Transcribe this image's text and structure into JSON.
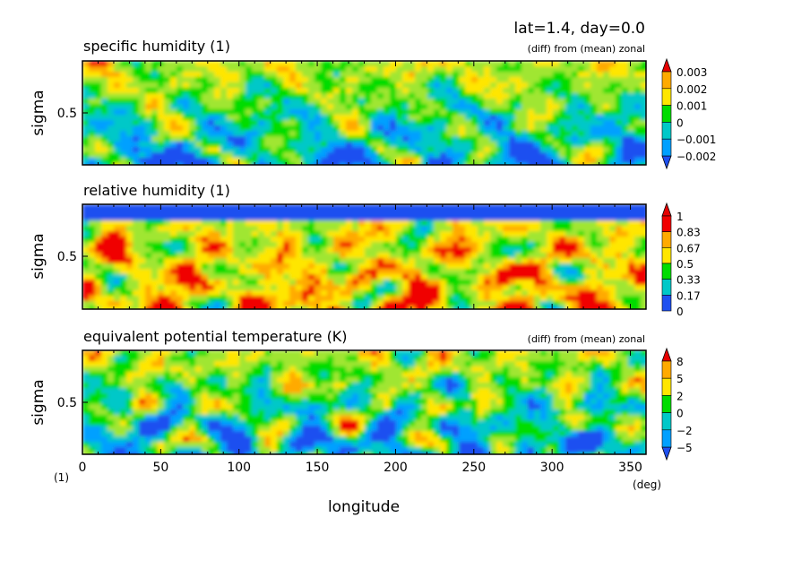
{
  "header": {
    "info": "lat=1.4, day=0.0"
  },
  "xaxis": {
    "label": "longitude",
    "unit": "(deg)",
    "ticks": [
      "0",
      "50",
      "100",
      "150",
      "200",
      "250",
      "300",
      "350"
    ],
    "tick_values": [
      0,
      50,
      100,
      150,
      200,
      250,
      300,
      350
    ],
    "range": [
      0,
      360
    ]
  },
  "corner_unit": "(1)",
  "colors": {
    "levels": [
      "#1e50f0",
      "#00a0ff",
      "#00c8c8",
      "#00dc00",
      "#a0e632",
      "#ffe600",
      "#ffaa00",
      "#f00000"
    ],
    "below_arrow": "#1e50f0",
    "above_arrow": "#e60000"
  },
  "chart_data": [
    {
      "type": "heatmap",
      "title": "specific humidity (1)",
      "note": "(diff) from (mean) zonal",
      "ylabel": "sigma",
      "ytick_label": "0.5",
      "ytick_value": 0.5,
      "xlim": [
        0,
        360
      ],
      "colorbar": {
        "labels": [
          "0.003",
          "0.002",
          "0.001",
          "0",
          "−0.001",
          "−0.002"
        ],
        "values": [
          0.003,
          0.002,
          0.001,
          0,
          -0.001,
          -0.002
        ]
      }
    },
    {
      "type": "heatmap",
      "title": "relative humidity (1)",
      "note": "",
      "ylabel": "sigma",
      "ytick_label": "0.5",
      "ytick_value": 0.5,
      "xlim": [
        0,
        360
      ],
      "colorbar": {
        "labels": [
          "1",
          "0.83",
          "0.67",
          "0.5",
          "0.33",
          "0.17",
          "0"
        ],
        "values": [
          1,
          0.83,
          0.67,
          0.5,
          0.33,
          0.17,
          0
        ]
      }
    },
    {
      "type": "heatmap",
      "title": "equivalent potential temperature (K)",
      "note": "(diff) from (mean) zonal",
      "ylabel": "sigma",
      "ytick_label": "0.5",
      "ytick_value": 0.5,
      "xlim": [
        0,
        360
      ],
      "colorbar": {
        "labels": [
          "8",
          "5",
          "2",
          "0",
          "−2",
          "−5"
        ],
        "values": [
          8,
          5,
          2,
          0,
          -2,
          -5
        ]
      }
    }
  ]
}
